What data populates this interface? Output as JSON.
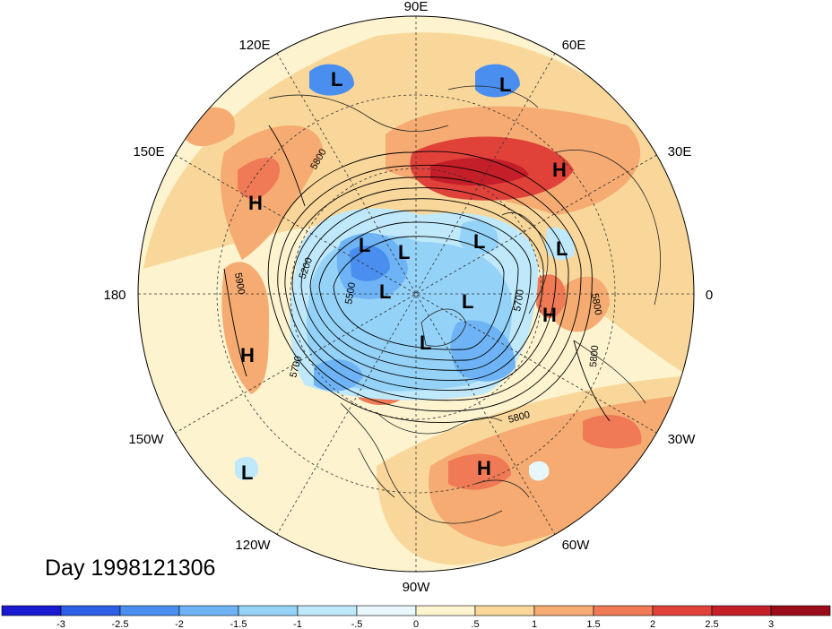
{
  "title": "Day 1998121306",
  "longitude_labels": {
    "top": "90E",
    "upper_left": "120E",
    "upper_right": "60E",
    "left_upper": "150E",
    "right_upper": "30E",
    "left": "180",
    "right": "0",
    "left_lower": "150W",
    "right_lower": "30W",
    "lower_left": "120W",
    "lower_right": "60W",
    "bottom": "90W"
  },
  "contour_labels": [
    "5800",
    "5200",
    "5500",
    "5900",
    "5700",
    "5800",
    "5800",
    "5700",
    "5800"
  ],
  "pressure_centers": [
    {
      "type": "L"
    },
    {
      "type": "L"
    },
    {
      "type": "H"
    },
    {
      "type": "H"
    },
    {
      "type": "L"
    },
    {
      "type": "L"
    },
    {
      "type": "L"
    },
    {
      "type": "L"
    },
    {
      "type": "L"
    },
    {
      "type": "H"
    },
    {
      "type": "H"
    },
    {
      "type": "L"
    },
    {
      "type": "L"
    },
    {
      "type": "H"
    },
    {
      "type": "L"
    }
  ],
  "colorbar": {
    "ticks": [
      "-3",
      "-2.5",
      "-2",
      "-1.5",
      "-1",
      "-.5",
      "0",
      ".5",
      "1",
      "1.5",
      "2",
      "2.5",
      "3"
    ],
    "colors": [
      "#1a1ad0",
      "#2f5ee6",
      "#4a8ef0",
      "#6db3f5",
      "#94d2f7",
      "#bfe9fb",
      "#e8f7fc",
      "#fdf3cf",
      "#f9d79a",
      "#f5ab72",
      "#ef7a55",
      "#e0423a",
      "#c41e28",
      "#9b0c1a"
    ]
  }
}
